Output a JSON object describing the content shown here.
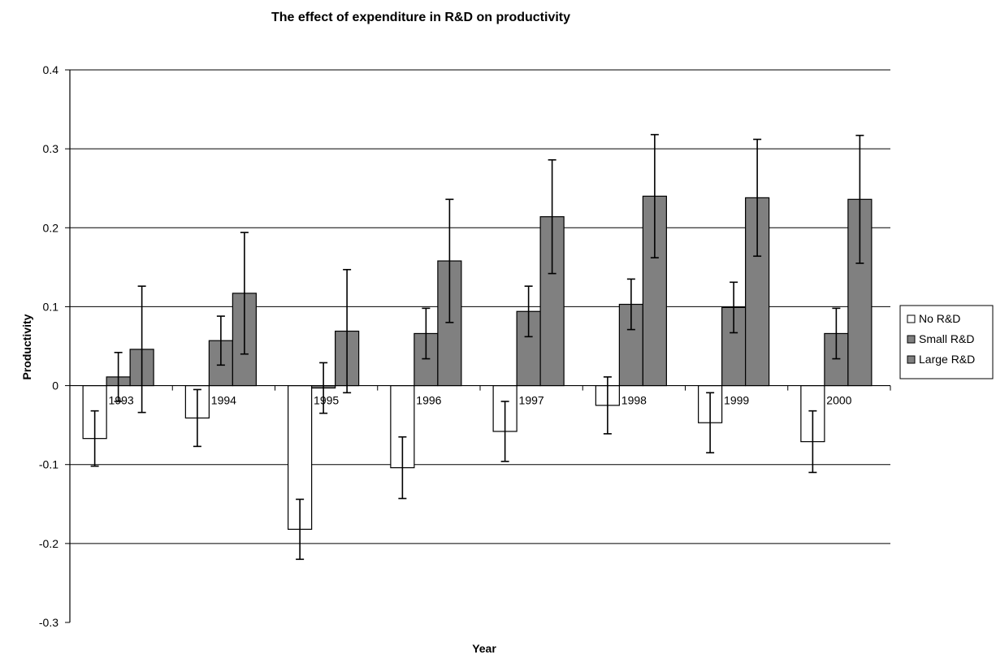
{
  "chart_data": {
    "type": "bar",
    "title": "The effect of expenditure in R&D on productivity",
    "xlabel": "Year",
    "ylabel": "Productivity",
    "ylim": [
      -0.3,
      0.4
    ],
    "yticks": [
      0.4,
      0.3,
      0.2,
      0.1,
      0,
      -0.1,
      -0.2,
      -0.3
    ],
    "ytick_labels": [
      "0.4",
      "0.3",
      "0.2",
      "0.1",
      "0",
      "-0.1",
      "-0.2",
      "-0.3"
    ],
    "categories": [
      "1993",
      "1994",
      "1995",
      "1996",
      "1997",
      "1998",
      "1999",
      "2000"
    ],
    "grid": true,
    "legend_position": "right",
    "series": [
      {
        "name": "No R&D",
        "color": "#ffffff",
        "values": [
          -0.067,
          -0.041,
          -0.182,
          -0.104,
          -0.058,
          -0.025,
          -0.047,
          -0.071
        ],
        "errors": [
          0.035,
          0.036,
          0.038,
          0.039,
          0.038,
          0.036,
          0.038,
          0.039
        ]
      },
      {
        "name": "Small R&D",
        "color": "#808080",
        "values": [
          0.011,
          0.057,
          -0.003,
          0.066,
          0.094,
          0.103,
          0.099,
          0.066
        ],
        "errors": [
          0.031,
          0.031,
          0.032,
          0.032,
          0.032,
          0.032,
          0.032,
          0.032
        ]
      },
      {
        "name": "Large R&D",
        "color": "#808080",
        "values": [
          0.046,
          0.117,
          0.069,
          0.158,
          0.214,
          0.24,
          0.238,
          0.236
        ],
        "errors": [
          0.08,
          0.077,
          0.078,
          0.078,
          0.072,
          0.078,
          0.074,
          0.081
        ]
      }
    ]
  }
}
